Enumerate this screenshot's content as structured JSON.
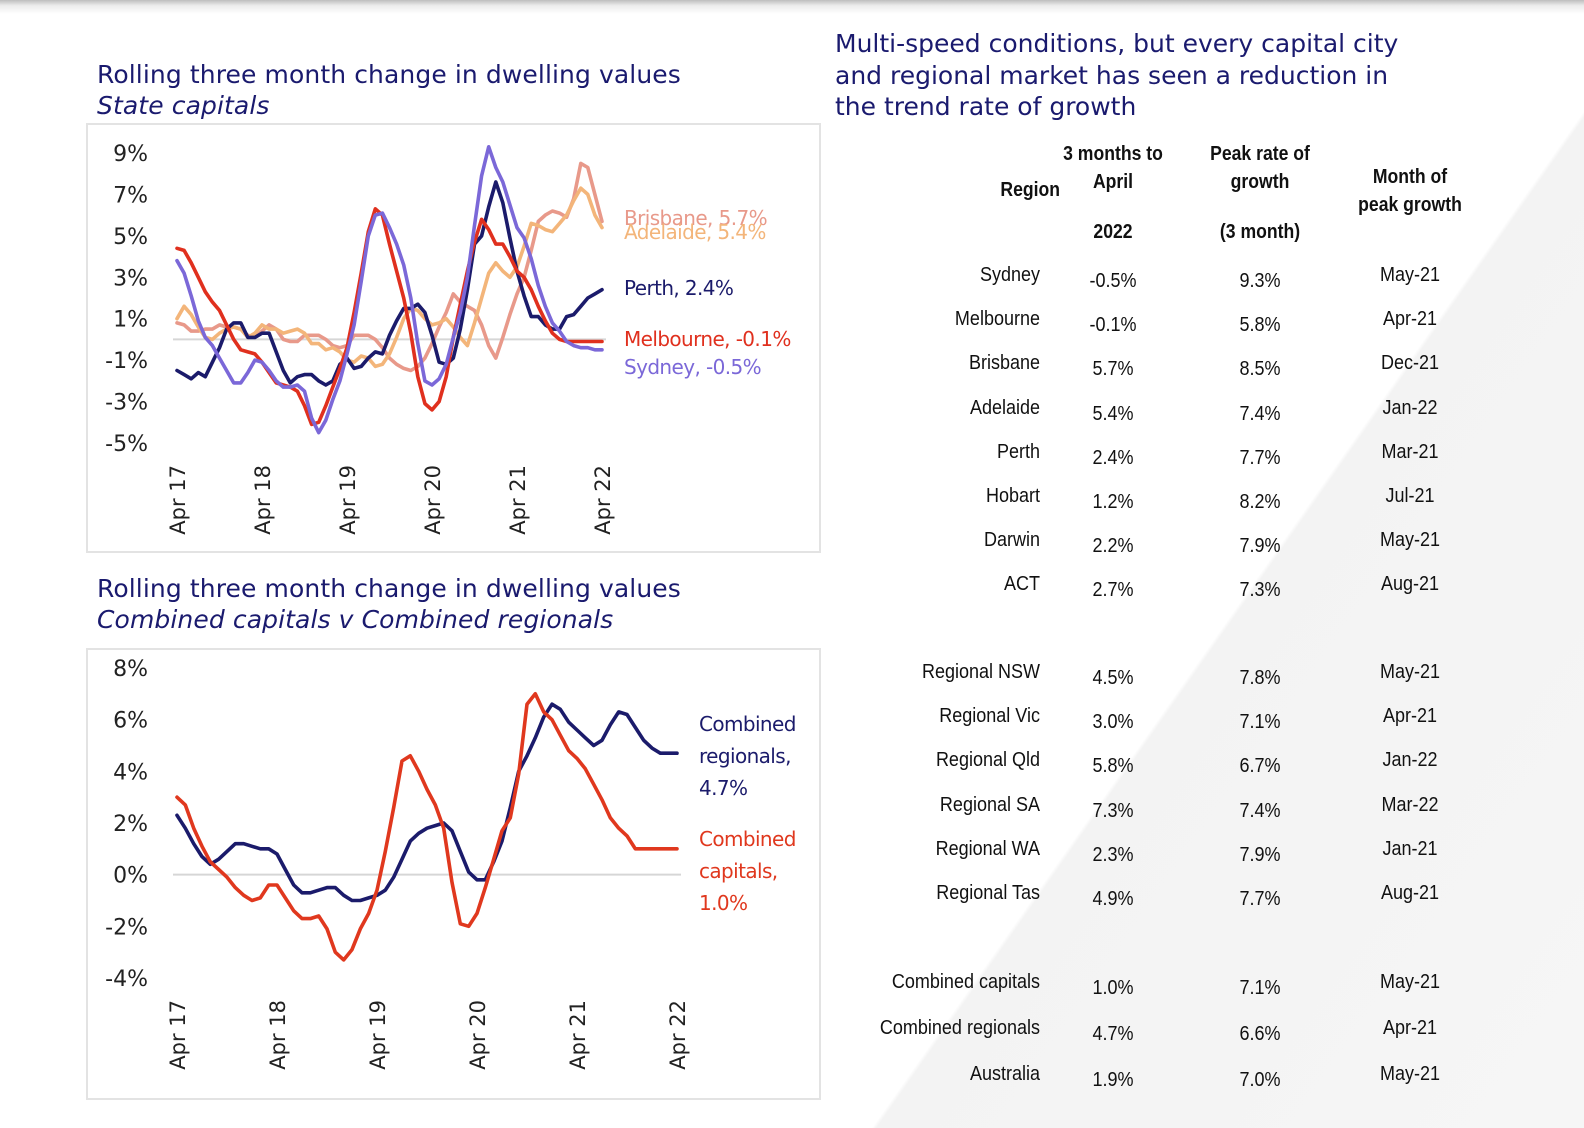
{
  "charts_titles": {
    "chart1": {
      "title": "Rolling three month change in dwelling values",
      "subtitle": "State capitals"
    },
    "chart2": {
      "title": "Rolling three month change in dwelling values",
      "subtitle": "Combined capitals v Combined regionals"
    }
  },
  "chart_data": [
    {
      "type": "line",
      "title": "Rolling three month change in dwelling values",
      "subtitle": "State capitals",
      "xlabel": "",
      "ylabel": "",
      "x_start": "Apr 17",
      "x_end": "Apr 22",
      "x_frequency": "monthly",
      "x_ticks": [
        "Apr 17",
        "Apr 18",
        "Apr 19",
        "Apr 20",
        "Apr 21",
        "Apr 22"
      ],
      "y_ticks": [
        "9%",
        "7%",
        "5%",
        "3%",
        "1%",
        "-1%",
        "-3%",
        "-5%"
      ],
      "ylim": [
        -5,
        9
      ],
      "grid": false,
      "zero_line": true,
      "legend": "end-of-line labels, right",
      "series": [
        {
          "name": "Brisbane",
          "label": "Brisbane, 5.7%",
          "color": "#e8998a",
          "values": [
            0.8,
            0.7,
            0.4,
            0.4,
            0.5,
            0.5,
            0.7,
            0.6,
            0.6,
            0.5,
            0.2,
            0.1,
            0.4,
            0.7,
            0.5,
            0.0,
            -0.1,
            -0.1,
            0.2,
            0.2,
            0.2,
            0.0,
            -0.3,
            -0.4,
            -0.3,
            0.2,
            0.2,
            0.2,
            0.0,
            -0.4,
            -0.9,
            -1.2,
            -1.4,
            -1.5,
            -1.3,
            -0.9,
            -0.2,
            0.6,
            1.3,
            2.2,
            1.8,
            1.6,
            1.4,
            0.7,
            -0.3,
            -0.9,
            0.1,
            1.2,
            2.2,
            3.0,
            4.3,
            5.7,
            6.0,
            6.2,
            6.1,
            5.9,
            6.8,
            8.5,
            8.3,
            7.0,
            5.7
          ]
        },
        {
          "name": "Adelaide",
          "label": "Adelaide, 5.4%",
          "color": "#f3b57a",
          "values": [
            1.0,
            1.6,
            1.2,
            0.6,
            0.1,
            0.0,
            0.3,
            0.5,
            0.6,
            0.5,
            0.1,
            0.3,
            0.7,
            0.5,
            0.5,
            0.3,
            0.4,
            0.5,
            0.3,
            -0.2,
            -0.2,
            -0.5,
            -0.4,
            -0.6,
            -1.0,
            -1.1,
            -0.8,
            -0.9,
            -1.3,
            -1.2,
            -0.7,
            0.1,
            1.0,
            1.5,
            1.4,
            1.0,
            0.7,
            0.8,
            1.0,
            0.6,
            0.1,
            -0.3,
            0.8,
            2.0,
            3.2,
            3.7,
            3.3,
            3.0,
            3.5,
            4.5,
            5.6,
            5.5,
            5.3,
            5.2,
            5.6,
            6.0,
            6.7,
            7.3,
            7.0,
            6.0,
            5.4
          ]
        },
        {
          "name": "Perth",
          "label": "Perth, 2.4%",
          "color": "#1b1b6b",
          "values": [
            -1.5,
            -1.7,
            -1.9,
            -1.6,
            -1.8,
            -1.1,
            -0.4,
            0.5,
            0.8,
            0.8,
            0.1,
            0.1,
            0.3,
            0.3,
            -0.6,
            -1.5,
            -2.1,
            -1.8,
            -1.7,
            -1.7,
            -2.0,
            -2.2,
            -2.0,
            -1.2,
            -0.9,
            -1.4,
            -1.3,
            -0.9,
            -0.6,
            -0.7,
            0.2,
            0.9,
            1.5,
            1.5,
            1.7,
            1.3,
            0.2,
            -1.1,
            -1.2,
            -0.9,
            0.5,
            2.4,
            4.6,
            5.0,
            6.4,
            7.6,
            6.6,
            4.9,
            3.3,
            2.1,
            1.1,
            1.1,
            0.7,
            0.5,
            0.5,
            1.1,
            1.2,
            1.6,
            2.0,
            2.2,
            2.4
          ]
        },
        {
          "name": "Melbourne",
          "label": "Melbourne, -0.1%",
          "color": "#e0301e",
          "values": [
            4.4,
            4.3,
            3.7,
            3.0,
            2.3,
            1.8,
            1.4,
            0.7,
            0.0,
            -0.5,
            -0.6,
            -0.7,
            -1.1,
            -1.6,
            -2.1,
            -2.2,
            -2.3,
            -2.5,
            -3.2,
            -4.1,
            -4.0,
            -3.2,
            -2.3,
            -1.4,
            -0.4,
            1.3,
            3.2,
            5.2,
            6.3,
            6.0,
            4.6,
            3.3,
            2.0,
            0.3,
            -1.8,
            -3.1,
            -3.4,
            -3.0,
            -1.8,
            0.1,
            1.7,
            3.3,
            4.7,
            5.8,
            5.3,
            4.6,
            4.6,
            4.0,
            3.3,
            3.0,
            2.4,
            1.6,
            0.9,
            0.3,
            0.0,
            -0.1,
            -0.1,
            -0.1,
            -0.1,
            -0.1,
            -0.1
          ]
        },
        {
          "name": "Sydney",
          "label": "Sydney, -0.5%",
          "color": "#7b68d8",
          "values": [
            3.8,
            3.2,
            2.1,
            0.9,
            0.1,
            -0.3,
            -0.9,
            -1.5,
            -2.1,
            -2.1,
            -1.6,
            -1.0,
            -1.1,
            -1.5,
            -2.0,
            -2.3,
            -2.3,
            -2.2,
            -2.5,
            -3.8,
            -4.5,
            -3.9,
            -2.9,
            -2.0,
            -0.7,
            0.7,
            2.8,
            5.0,
            6.0,
            6.1,
            5.4,
            4.6,
            3.6,
            2.0,
            -0.2,
            -2.0,
            -2.2,
            -1.9,
            -1.2,
            0.1,
            1.3,
            3.0,
            5.5,
            7.9,
            9.3,
            8.3,
            7.6,
            6.5,
            5.4,
            4.9,
            3.9,
            2.6,
            1.6,
            0.8,
            0.4,
            -0.1,
            -0.3,
            -0.4,
            -0.4,
            -0.5,
            -0.5
          ]
        }
      ]
    },
    {
      "type": "line",
      "title": "Rolling three month change in dwelling values",
      "subtitle": "Combined capitals v Combined regionals",
      "xlabel": "",
      "ylabel": "",
      "x_start": "Apr 17",
      "x_end": "Apr 22",
      "x_frequency": "monthly",
      "x_ticks": [
        "Apr 17",
        "Apr 18",
        "Apr 19",
        "Apr 20",
        "Apr 21",
        "Apr 22"
      ],
      "y_ticks": [
        "8%",
        "6%",
        "4%",
        "2%",
        "0%",
        "-2%",
        "-4%"
      ],
      "ylim": [
        -4,
        8
      ],
      "grid": false,
      "zero_line": true,
      "legend": "end-of-line labels, right",
      "series": [
        {
          "name": "Combined regionals",
          "label": [
            "Combined",
            "regionals,",
            "4.7%"
          ],
          "color": "#1b1b6b",
          "values": [
            2.3,
            1.8,
            1.2,
            0.7,
            0.4,
            0.6,
            0.9,
            1.2,
            1.2,
            1.1,
            1.0,
            1.0,
            0.8,
            0.2,
            -0.4,
            -0.7,
            -0.7,
            -0.6,
            -0.5,
            -0.5,
            -0.8,
            -1.0,
            -1.0,
            -0.9,
            -0.8,
            -0.6,
            -0.1,
            0.6,
            1.3,
            1.6,
            1.8,
            1.9,
            2.0,
            1.7,
            0.9,
            0.1,
            -0.2,
            -0.2,
            0.5,
            1.3,
            2.6,
            4.0,
            4.6,
            5.3,
            6.1,
            6.6,
            6.4,
            5.9,
            5.6,
            5.3,
            5.0,
            5.2,
            5.8,
            6.3,
            6.2,
            5.7,
            5.2,
            4.9,
            4.7,
            4.7,
            4.7
          ]
        },
        {
          "name": "Combined capitals",
          "label": [
            "Combined",
            "capitals,",
            "1.0%"
          ],
          "color": "#e0381e",
          "values": [
            3.0,
            2.7,
            1.8,
            1.1,
            0.5,
            0.2,
            -0.1,
            -0.5,
            -0.8,
            -1.0,
            -0.9,
            -0.4,
            -0.4,
            -0.9,
            -1.4,
            -1.7,
            -1.7,
            -1.6,
            -2.1,
            -3.0,
            -3.3,
            -2.9,
            -2.1,
            -1.5,
            -0.6,
            0.9,
            2.6,
            4.4,
            4.6,
            4.0,
            3.3,
            2.7,
            1.8,
            -0.3,
            -1.9,
            -2.0,
            -1.5,
            -0.5,
            0.6,
            1.7,
            2.2,
            3.9,
            6.6,
            7.0,
            6.3,
            6.0,
            5.4,
            4.8,
            4.5,
            4.1,
            3.5,
            2.9,
            2.2,
            1.8,
            1.5,
            1.0,
            1.0,
            1.0,
            1.0,
            1.0,
            1.0
          ]
        }
      ]
    }
  ],
  "right_panel": {
    "title": "Multi-speed conditions, but every capital city and regional market has seen a reduction in the trend rate of growth",
    "title_lines": [
      "Multi-speed conditions, but every capital city",
      "and regional market has seen a reduction in",
      "the trend rate of growth"
    ],
    "table": {
      "headers": {
        "region": "Region",
        "three_months": [
          "3 months to",
          "April",
          "2022"
        ],
        "peak_rate": [
          "Peak rate of",
          "growth",
          "(3 month)"
        ],
        "peak_month": [
          "Month of",
          "peak growth"
        ]
      },
      "groups": [
        [
          {
            "region": "Sydney",
            "three_months": "-0.5%",
            "peak_rate": "9.3%",
            "peak_month": "May-21"
          },
          {
            "region": "Melbourne",
            "three_months": "-0.1%",
            "peak_rate": "5.8%",
            "peak_month": "Apr-21"
          },
          {
            "region": "Brisbane",
            "three_months": "5.7%",
            "peak_rate": "8.5%",
            "peak_month": "Dec-21"
          },
          {
            "region": "Adelaide",
            "three_months": "5.4%",
            "peak_rate": "7.4%",
            "peak_month": "Jan-22"
          },
          {
            "region": "Perth",
            "three_months": "2.4%",
            "peak_rate": "7.7%",
            "peak_month": "Mar-21"
          },
          {
            "region": "Hobart",
            "three_months": "1.2%",
            "peak_rate": "8.2%",
            "peak_month": "Jul-21"
          },
          {
            "region": "Darwin",
            "three_months": "2.2%",
            "peak_rate": "7.9%",
            "peak_month": "May-21"
          },
          {
            "region": "ACT",
            "three_months": "2.7%",
            "peak_rate": "7.3%",
            "peak_month": "Aug-21"
          }
        ],
        [
          {
            "region": "Regional NSW",
            "three_months": "4.5%",
            "peak_rate": "7.8%",
            "peak_month": "May-21"
          },
          {
            "region": "Regional Vic",
            "three_months": "3.0%",
            "peak_rate": "7.1%",
            "peak_month": "Apr-21"
          },
          {
            "region": "Regional Qld",
            "three_months": "5.8%",
            "peak_rate": "6.7%",
            "peak_month": "Jan-22"
          },
          {
            "region": "Regional SA",
            "three_months": "7.3%",
            "peak_rate": "7.4%",
            "peak_month": "Mar-22"
          },
          {
            "region": "Regional WA",
            "three_months": "2.3%",
            "peak_rate": "7.9%",
            "peak_month": "Jan-21"
          },
          {
            "region": "Regional Tas",
            "three_months": "4.9%",
            "peak_rate": "7.7%",
            "peak_month": "Aug-21"
          }
        ],
        [
          {
            "region": "Combined capitals",
            "three_months": "1.0%",
            "peak_rate": "7.1%",
            "peak_month": "May-21"
          },
          {
            "region": "Combined regionals",
            "three_months": "4.7%",
            "peak_rate": "6.6%",
            "peak_month": "Apr-21"
          },
          {
            "region": "Australia",
            "three_months": "1.9%",
            "peak_rate": "7.0%",
            "peak_month": "May-21"
          }
        ]
      ]
    }
  }
}
